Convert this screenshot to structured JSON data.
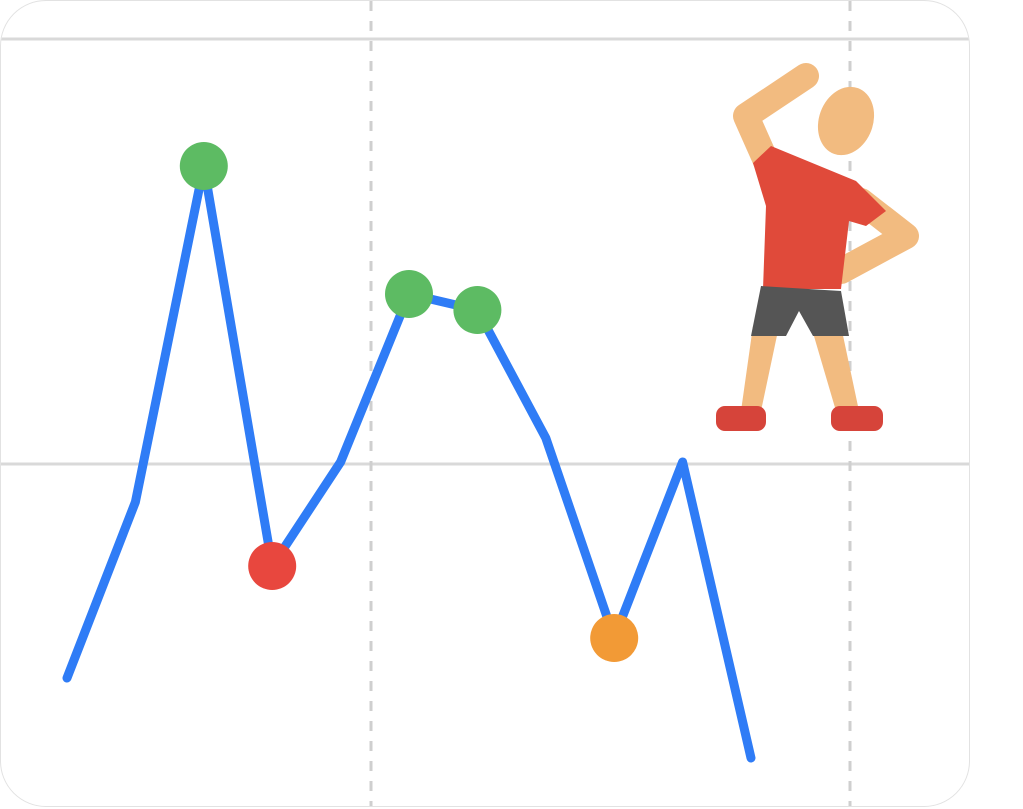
{
  "chart_data": {
    "type": "line",
    "x": [
      0,
      1,
      2,
      3,
      4,
      5,
      6,
      7,
      8,
      9,
      10
    ],
    "values": [
      0,
      22,
      64,
      14,
      27,
      48,
      46,
      30,
      5,
      27,
      -10
    ],
    "markers": [
      {
        "index": 2,
        "status": "good"
      },
      {
        "index": 3,
        "status": "bad"
      },
      {
        "index": 5,
        "status": "good"
      },
      {
        "index": 6,
        "status": "good"
      },
      {
        "index": 8,
        "status": "warning"
      }
    ],
    "grid": true,
    "line_color": "#2f7cf6",
    "status_colors": {
      "good": "#5dbb63",
      "bad": "#e8473e",
      "warning": "#f29a36"
    }
  },
  "illustration": {
    "icon": "stretching-person-icon",
    "colors": {
      "skin": "#f2bb80",
      "shirt": "#e04a3a",
      "shorts": "#555555",
      "shoes": "#d6443a"
    }
  }
}
